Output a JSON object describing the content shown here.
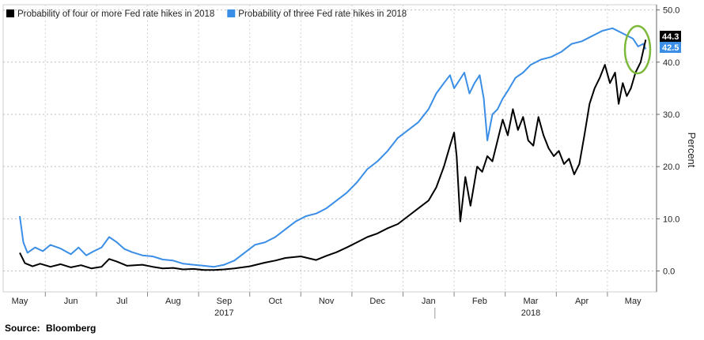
{
  "source": {
    "label": "Source:",
    "value": "Bloomberg"
  },
  "chart_data": {
    "type": "line",
    "title": "",
    "xlabel": "",
    "ylabel": "Percent",
    "ylim": [
      -4,
      51
    ],
    "y_ticks": [
      0,
      10,
      20,
      30,
      40,
      50
    ],
    "y_tick_labels": [
      "0.0",
      "10.0",
      "20.0",
      "30.0",
      "40.0",
      "50.0"
    ],
    "x_months": [
      "May",
      "Jun",
      "Jul",
      "Aug",
      "Sep",
      "Oct",
      "Nov",
      "Dec",
      "Jan",
      "Feb",
      "Mar",
      "Apr",
      "May"
    ],
    "x_years": [
      {
        "label": "2017",
        "index": 4.0
      },
      {
        "label": "2018",
        "index": 10.0
      }
    ],
    "grid": true,
    "legend_position": "top-left",
    "last_values": [
      {
        "label": "44.3",
        "color": "#ffffff",
        "bg": "#000000"
      },
      {
        "label": "42.5",
        "color": "#ffffff",
        "bg": "#3a8ee6"
      }
    ],
    "highlight": "green ellipse around latest values",
    "series": [
      {
        "name": "Probability of four or more Fed rate hikes in 2018",
        "color": "#000000",
        "points": [
          [
            0.0,
            3.5
          ],
          [
            0.1,
            1.5
          ],
          [
            0.25,
            0.9
          ],
          [
            0.4,
            1.4
          ],
          [
            0.6,
            0.8
          ],
          [
            0.8,
            1.3
          ],
          [
            1.0,
            0.7
          ],
          [
            1.2,
            1.1
          ],
          [
            1.4,
            0.5
          ],
          [
            1.6,
            0.8
          ],
          [
            1.75,
            2.3
          ],
          [
            1.9,
            1.8
          ],
          [
            2.1,
            1.0
          ],
          [
            2.4,
            1.2
          ],
          [
            2.6,
            0.8
          ],
          [
            2.8,
            0.5
          ],
          [
            3.0,
            0.6
          ],
          [
            3.2,
            0.3
          ],
          [
            3.4,
            0.4
          ],
          [
            3.6,
            0.2
          ],
          [
            3.8,
            0.2
          ],
          [
            4.0,
            0.3
          ],
          [
            4.2,
            0.5
          ],
          [
            4.5,
            0.9
          ],
          [
            4.8,
            1.6
          ],
          [
            5.0,
            2.0
          ],
          [
            5.2,
            2.5
          ],
          [
            5.5,
            2.8
          ],
          [
            5.8,
            2.1
          ],
          [
            6.0,
            2.9
          ],
          [
            6.2,
            3.6
          ],
          [
            6.4,
            4.5
          ],
          [
            6.6,
            5.5
          ],
          [
            6.8,
            6.5
          ],
          [
            7.0,
            7.2
          ],
          [
            7.2,
            8.2
          ],
          [
            7.4,
            9.0
          ],
          [
            7.6,
            10.5
          ],
          [
            7.8,
            12.0
          ],
          [
            8.0,
            13.5
          ],
          [
            8.15,
            16.0
          ],
          [
            8.3,
            20.0
          ],
          [
            8.42,
            24.0
          ],
          [
            8.5,
            26.5
          ],
          [
            8.55,
            22.0
          ],
          [
            8.62,
            9.5
          ],
          [
            8.72,
            18.0
          ],
          [
            8.82,
            12.5
          ],
          [
            8.95,
            20.0
          ],
          [
            9.05,
            19.0
          ],
          [
            9.15,
            22.0
          ],
          [
            9.25,
            21.0
          ],
          [
            9.35,
            25.0
          ],
          [
            9.45,
            29.0
          ],
          [
            9.55,
            26.0
          ],
          [
            9.65,
            31.0
          ],
          [
            9.75,
            27.0
          ],
          [
            9.85,
            29.5
          ],
          [
            9.95,
            25.0
          ],
          [
            10.05,
            24.0
          ],
          [
            10.15,
            29.5
          ],
          [
            10.25,
            26.0
          ],
          [
            10.35,
            23.5
          ],
          [
            10.45,
            22.0
          ],
          [
            10.55,
            23.0
          ],
          [
            10.65,
            20.5
          ],
          [
            10.75,
            21.5
          ],
          [
            10.85,
            18.5
          ],
          [
            10.95,
            20.5
          ],
          [
            11.05,
            26.0
          ],
          [
            11.15,
            32.0
          ],
          [
            11.25,
            35.0
          ],
          [
            11.35,
            37.0
          ],
          [
            11.45,
            39.5
          ],
          [
            11.55,
            36.0
          ],
          [
            11.65,
            38.0
          ],
          [
            11.72,
            32.0
          ],
          [
            11.8,
            36.0
          ],
          [
            11.88,
            33.5
          ],
          [
            11.96,
            35.0
          ],
          [
            12.05,
            38.0
          ],
          [
            12.15,
            40.0
          ],
          [
            12.25,
            44.3
          ]
        ]
      },
      {
        "name": "Probability of three Fed rate hikes in 2018",
        "color": "#3a8ee6",
        "points": [
          [
            0.0,
            10.5
          ],
          [
            0.07,
            5.5
          ],
          [
            0.15,
            3.5
          ],
          [
            0.3,
            4.5
          ],
          [
            0.45,
            3.8
          ],
          [
            0.6,
            5.0
          ],
          [
            0.8,
            4.3
          ],
          [
            1.0,
            3.2
          ],
          [
            1.15,
            4.5
          ],
          [
            1.3,
            3.0
          ],
          [
            1.45,
            3.8
          ],
          [
            1.6,
            4.5
          ],
          [
            1.75,
            6.5
          ],
          [
            1.9,
            5.5
          ],
          [
            2.05,
            4.2
          ],
          [
            2.2,
            3.6
          ],
          [
            2.4,
            3.0
          ],
          [
            2.6,
            2.8
          ],
          [
            2.8,
            2.2
          ],
          [
            3.0,
            2.0
          ],
          [
            3.2,
            1.4
          ],
          [
            3.4,
            1.2
          ],
          [
            3.6,
            1.0
          ],
          [
            3.8,
            0.8
          ],
          [
            4.0,
            1.2
          ],
          [
            4.2,
            2.0
          ],
          [
            4.4,
            3.5
          ],
          [
            4.6,
            5.0
          ],
          [
            4.8,
            5.5
          ],
          [
            5.0,
            6.5
          ],
          [
            5.2,
            8.0
          ],
          [
            5.4,
            9.5
          ],
          [
            5.6,
            10.5
          ],
          [
            5.8,
            11.0
          ],
          [
            6.0,
            12.0
          ],
          [
            6.2,
            13.5
          ],
          [
            6.4,
            15.0
          ],
          [
            6.6,
            17.0
          ],
          [
            6.8,
            19.5
          ],
          [
            7.0,
            21.0
          ],
          [
            7.2,
            23.0
          ],
          [
            7.4,
            25.5
          ],
          [
            7.6,
            27.0
          ],
          [
            7.8,
            28.5
          ],
          [
            8.0,
            31.0
          ],
          [
            8.15,
            34.0
          ],
          [
            8.3,
            36.0
          ],
          [
            8.42,
            37.5
          ],
          [
            8.5,
            35.0
          ],
          [
            8.6,
            36.5
          ],
          [
            8.7,
            38.0
          ],
          [
            8.8,
            34.0
          ],
          [
            8.9,
            36.0
          ],
          [
            9.0,
            37.5
          ],
          [
            9.08,
            33.0
          ],
          [
            9.15,
            25.0
          ],
          [
            9.25,
            30.0
          ],
          [
            9.35,
            31.0
          ],
          [
            9.45,
            33.0
          ],
          [
            9.55,
            34.5
          ],
          [
            9.7,
            37.0
          ],
          [
            9.85,
            38.0
          ],
          [
            10.0,
            39.5
          ],
          [
            10.2,
            40.5
          ],
          [
            10.4,
            41.0
          ],
          [
            10.6,
            42.0
          ],
          [
            10.8,
            43.5
          ],
          [
            11.0,
            44.0
          ],
          [
            11.2,
            45.0
          ],
          [
            11.4,
            46.0
          ],
          [
            11.6,
            46.5
          ],
          [
            11.8,
            45.5
          ],
          [
            12.0,
            44.5
          ],
          [
            12.1,
            43.0
          ],
          [
            12.2,
            43.5
          ],
          [
            12.25,
            42.5
          ]
        ]
      }
    ]
  }
}
